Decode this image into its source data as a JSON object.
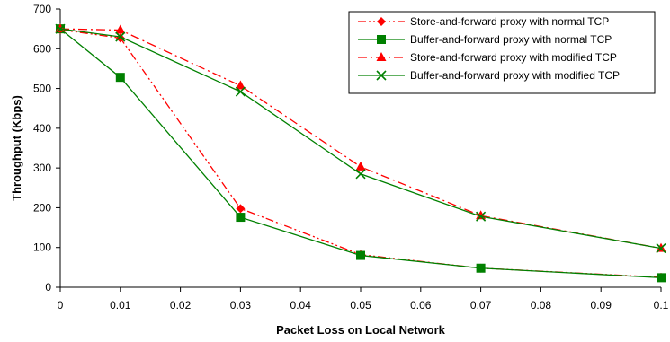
{
  "chart_data": {
    "type": "line",
    "title": "",
    "xlabel": "Packet Loss on Local Network",
    "ylabel": "Throughput (Kbps)",
    "x_tick_labels": [
      "0",
      "0.01",
      "0.02",
      "0.03",
      "0.04",
      "0.05",
      "0.06",
      "0.07",
      "0.08",
      "0.09",
      "0.1"
    ],
    "y_ticks": [
      0,
      100,
      200,
      300,
      400,
      500,
      600,
      700
    ],
    "ylim": [
      0,
      700
    ],
    "grid": false,
    "legend_position": "top-right",
    "series": [
      {
        "name": "Store-and-forward proxy with normal TCP",
        "marker": "diamond",
        "color": "#ff0000",
        "dash": "dash-dot-dot",
        "x": [
          0,
          0.01,
          0.03,
          0.05,
          0.07,
          0.1
        ],
        "y": [
          648,
          627,
          198,
          82,
          48,
          25
        ]
      },
      {
        "name": "Buffer-and-forward proxy with normal TCP",
        "marker": "square",
        "color": "#008000",
        "dash": "solid",
        "x": [
          0,
          0.01,
          0.03,
          0.05,
          0.07,
          0.1
        ],
        "y": [
          650,
          528,
          176,
          80,
          48,
          24
        ]
      },
      {
        "name": "Store-and-forward proxy with modified TCP",
        "marker": "triangle",
        "color": "#ff0000",
        "dash": "dash-dot",
        "x": [
          0,
          0.01,
          0.03,
          0.05,
          0.07,
          0.1
        ],
        "y": [
          650,
          647,
          507,
          303,
          180,
          98
        ]
      },
      {
        "name": "Buffer-and-forward proxy with modified TCP",
        "marker": "x",
        "color": "#008000",
        "dash": "solid",
        "x": [
          0,
          0.01,
          0.03,
          0.05,
          0.07,
          0.1
        ],
        "y": [
          650,
          630,
          492,
          285,
          178,
          98
        ]
      }
    ]
  }
}
